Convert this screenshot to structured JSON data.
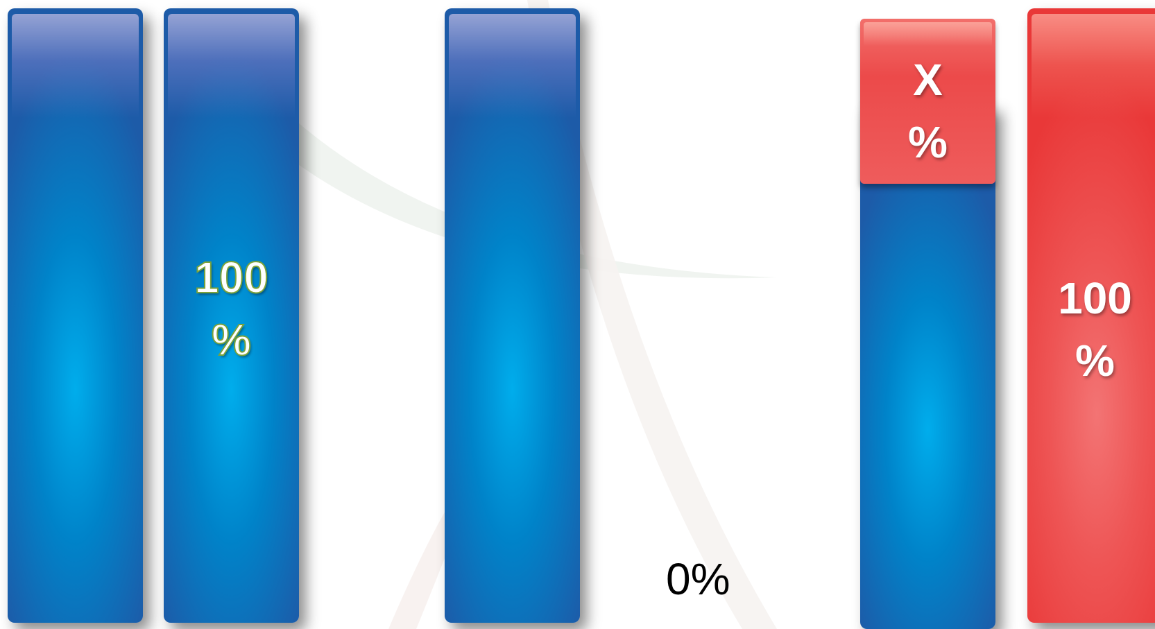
{
  "labels": {
    "bar2_value": "100\n%",
    "zero_value": "0%",
    "cap_value": "X\n%",
    "bar4_value": "100\n%"
  },
  "colors": {
    "blue_bar": "#0083c9",
    "red_bar": "#e93838",
    "outline_green": "#7aa23a"
  }
}
